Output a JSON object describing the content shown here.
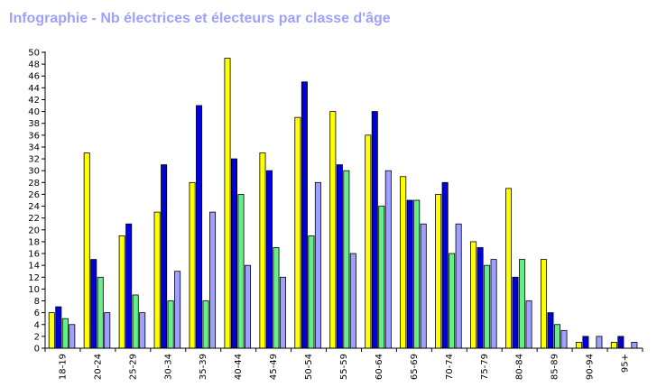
{
  "chart_data": {
    "type": "bar",
    "title": "Infographie - Nb électrices et électeurs par classe d'âge",
    "xlabel": "",
    "ylabel": "",
    "ylim": [
      0,
      50
    ],
    "yticks": [
      0,
      2,
      4,
      6,
      8,
      10,
      12,
      14,
      16,
      18,
      20,
      22,
      24,
      26,
      28,
      30,
      32,
      34,
      36,
      38,
      40,
      42,
      44,
      46,
      48,
      50
    ],
    "grid": false,
    "legend": "none",
    "categories": [
      "18-19",
      "20-24",
      "25-29",
      "30-34",
      "35-39",
      "40-44",
      "45-49",
      "50-54",
      "55-59",
      "60-64",
      "65-69",
      "70-74",
      "75-79",
      "80-84",
      "85-89",
      "90-94",
      "95+"
    ],
    "series": [
      {
        "color": "#ffff00",
        "values": [
          6,
          33,
          19,
          23,
          28,
          49,
          33,
          39,
          40,
          36,
          29,
          26,
          18,
          27,
          15,
          1,
          1
        ]
      },
      {
        "color": "#0000dd",
        "values": [
          7,
          15,
          21,
          31,
          41,
          32,
          30,
          45,
          31,
          40,
          25,
          28,
          17,
          12,
          6,
          2,
          2
        ]
      },
      {
        "color": "#66ee88",
        "values": [
          5,
          12,
          9,
          8,
          8,
          26,
          17,
          19,
          30,
          24,
          25,
          16,
          14,
          15,
          4,
          0,
          0
        ]
      },
      {
        "color": "#9f9fff",
        "values": [
          4,
          6,
          6,
          13,
          23,
          14,
          12,
          28,
          16,
          30,
          21,
          21,
          15,
          8,
          3,
          2,
          1
        ]
      }
    ]
  }
}
